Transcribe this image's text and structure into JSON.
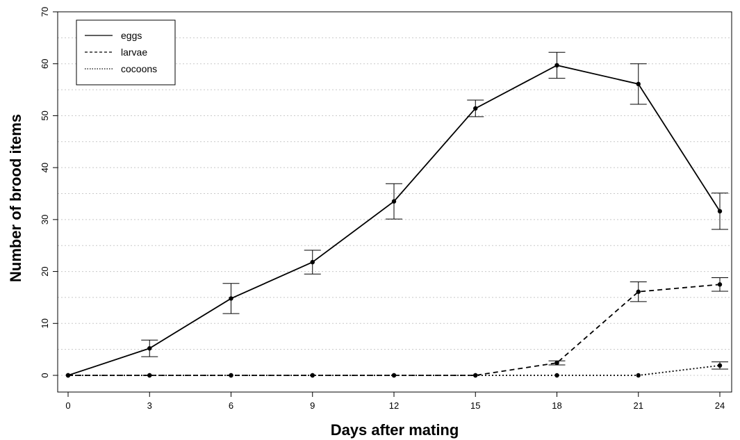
{
  "chart_data": {
    "type": "line",
    "xlabel": "Days after mating",
    "ylabel": "Number of brood items",
    "x": [
      0,
      3,
      6,
      9,
      12,
      15,
      18,
      21,
      24
    ],
    "xlim": [
      0,
      24
    ],
    "ylim": [
      0,
      70
    ],
    "xticks": [
      "0",
      "3",
      "6",
      "9",
      "12",
      "15",
      "18",
      "21",
      "24"
    ],
    "yticks": [
      "0",
      "10",
      "20",
      "30",
      "40",
      "50",
      "60",
      "70"
    ],
    "grid": "horizontal dotted",
    "legend_position": "top-left",
    "series": [
      {
        "name": "eggs",
        "line_style": "solid",
        "values": [
          0,
          5.2,
          14.8,
          21.8,
          33.5,
          51.4,
          59.7,
          56.1,
          31.6
        ],
        "error": [
          0,
          1.6,
          2.9,
          2.3,
          3.4,
          1.6,
          2.5,
          3.9,
          3.5
        ]
      },
      {
        "name": "larvae",
        "line_style": "dashed",
        "values": [
          0,
          0,
          0,
          0,
          0,
          0,
          2.4,
          16.1,
          17.5
        ],
        "error": [
          0,
          0,
          0,
          0,
          0,
          0,
          0.4,
          1.9,
          1.3
        ]
      },
      {
        "name": "cocoons",
        "line_style": "dotted",
        "values": [
          0,
          0,
          0,
          0,
          0,
          0,
          0,
          0,
          1.9
        ],
        "error": [
          0,
          0,
          0,
          0,
          0,
          0,
          0,
          0,
          0.7
        ]
      }
    ]
  }
}
